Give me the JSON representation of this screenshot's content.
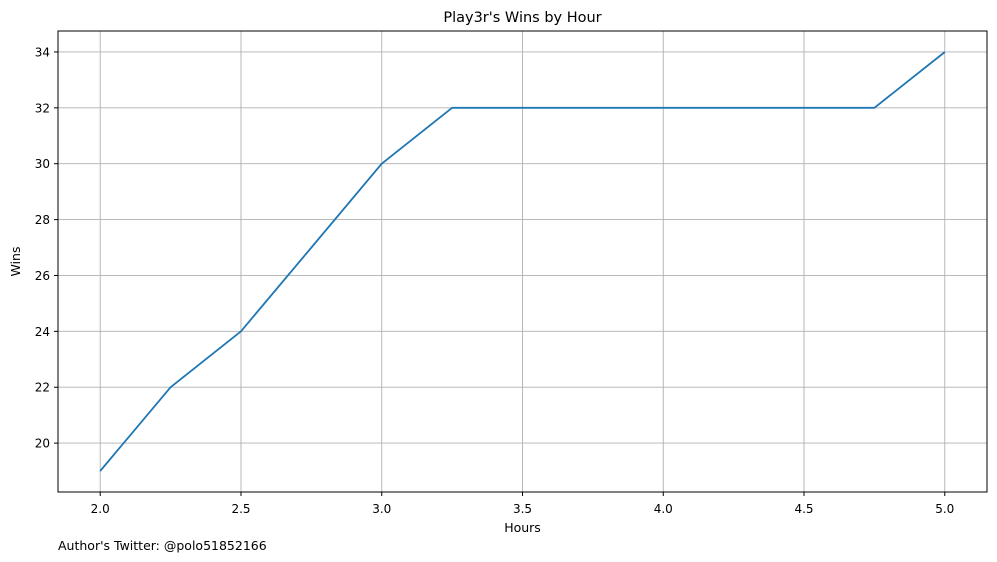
{
  "chart_data": {
    "type": "line",
    "title": "Play3r's Wins by Hour",
    "xlabel": "Hours",
    "ylabel": "Wins",
    "x": [
      2.0,
      2.25,
      2.5,
      2.75,
      3.0,
      3.25,
      3.5,
      3.75,
      4.0,
      4.25,
      4.5,
      4.75,
      5.0
    ],
    "series": [
      {
        "values": [
          19,
          22,
          24,
          27,
          30,
          32,
          32,
          32,
          32,
          32,
          32,
          32,
          34
        ],
        "color": "#1f77b4"
      }
    ],
    "xlim": [
      1.85,
      5.15
    ],
    "ylim": [
      18.25,
      34.75
    ],
    "xticks": [
      2.0,
      2.5,
      3.0,
      3.5,
      4.0,
      4.5,
      5.0
    ],
    "xtick_labels": [
      "2.0",
      "2.5",
      "3.0",
      "3.5",
      "4.0",
      "4.5",
      "5.0"
    ],
    "yticks": [
      20,
      22,
      24,
      26,
      28,
      30,
      32,
      34
    ],
    "ytick_labels": [
      "20",
      "22",
      "24",
      "26",
      "28",
      "30",
      "32",
      "34"
    ],
    "grid": true,
    "grid_color": "#b0b0b0"
  },
  "footer": {
    "text": "Author's Twitter: @polo51852166"
  }
}
